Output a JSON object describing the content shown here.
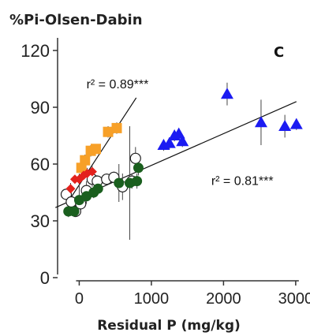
{
  "chart_data": {
    "type": "scatter",
    "title": "%Pi-Olsen-Dabin",
    "panel_label": "C",
    "xlabel": "Residual P (mg/kg)",
    "ylabel": "",
    "xlim": [
      -300,
      3100
    ],
    "ylim": [
      0,
      125
    ],
    "x_ticks": [
      {
        "value": 0,
        "label": "0"
      },
      {
        "value": 1000,
        "label": "1000"
      },
      {
        "value": 2000,
        "label": "2000"
      },
      {
        "value": 3000,
        "label": "3000"
      }
    ],
    "y_ticks": [
      {
        "value": 0,
        "label": "0"
      },
      {
        "value": 30,
        "label": "30"
      },
      {
        "value": 60,
        "label": "60"
      },
      {
        "value": 90,
        "label": "90"
      },
      {
        "value": 120,
        "label": "120"
      }
    ],
    "annotations": [
      {
        "text": "r² = 0.89***",
        "x": 100,
        "y": 100
      },
      {
        "text": "r² = 0.81***",
        "x": 1830,
        "y": 49
      }
    ],
    "regression_lines": [
      {
        "name": "steep fit",
        "x": [
          -120,
          790
        ],
        "y": [
          42,
          95
        ]
      },
      {
        "name": "shallow fit",
        "x": [
          -330,
          3010
        ],
        "y": [
          37,
          93
        ]
      }
    ],
    "series": [
      {
        "marker": "diamond",
        "color": "#e3211c",
        "x": [
          -120,
          -60,
          0,
          60,
          110,
          180
        ],
        "y": [
          47,
          52,
          52,
          54,
          55,
          56
        ],
        "yerr": [
          3,
          2,
          3,
          2,
          3,
          3
        ]
      },
      {
        "marker": "square",
        "color": "#f7a028",
        "x": [
          30,
          80,
          160,
          230,
          400,
          520
        ],
        "y": [
          58,
          62,
          67,
          68,
          77,
          79
        ],
        "yerr": [
          3,
          3,
          3,
          2,
          3,
          3
        ]
      },
      {
        "marker": "open-circle",
        "color": "#222222",
        "x": [
          -180,
          -110,
          -50,
          20,
          100,
          180,
          250,
          380,
          480,
          600,
          730,
          780
        ],
        "y": [
          44,
          40,
          35,
          39,
          46,
          52,
          51,
          52,
          53,
          48,
          51,
          63
        ],
        "yerr": [
          2,
          2,
          3,
          3,
          5,
          4,
          3,
          3,
          3,
          7,
          4,
          6
        ]
      },
      {
        "marker": "filled-circle",
        "color": "#1a5f1e",
        "x": [
          -150,
          -70,
          0,
          100,
          200,
          260,
          550,
          700,
          800,
          820
        ],
        "y": [
          35,
          35,
          41,
          43,
          45,
          47,
          50,
          50,
          51,
          58
        ],
        "yerr": [
          3,
          3,
          8,
          4,
          3,
          3,
          10,
          30,
          4,
          4
        ]
      },
      {
        "marker": "triangle",
        "color": "#1b1bf2",
        "x": [
          1170,
          1250,
          1320,
          1380,
          1430,
          2050,
          2520,
          2850,
          3010
        ],
        "y": [
          70,
          71,
          75,
          76,
          72,
          97,
          82,
          80,
          81
        ],
        "yerr": [
          3,
          3,
          3,
          3,
          3,
          6,
          12,
          6,
          3
        ]
      }
    ]
  }
}
